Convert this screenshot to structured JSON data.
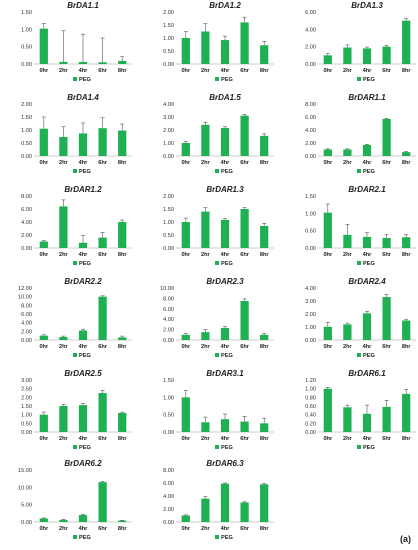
{
  "figure": {
    "label": "(a)",
    "bar_color": "#1eb053",
    "error_color": "#555555",
    "axis_color": "#999999"
  },
  "chart_data": [
    {
      "type": "bar",
      "title": "BrDA1.1",
      "categories": [
        "0hr",
        "2hr",
        "4hr",
        "6hr",
        "8hr"
      ],
      "series": [
        {
          "name": "PEG",
          "values": [
            1.02,
            0.06,
            0.06,
            0.05,
            0.09
          ],
          "errors": [
            0.15,
            0.9,
            0.8,
            0.7,
            0.12
          ]
        }
      ],
      "ylim": [
        0,
        1.5
      ],
      "yticks": [
        "0.00",
        "0.50",
        "1.00",
        "1.50"
      ],
      "legend": "bottom"
    },
    {
      "type": "bar",
      "title": "BrDA1.2",
      "categories": [
        "0hr",
        "2hr",
        "4hr",
        "6hr",
        "8hr"
      ],
      "series": [
        {
          "name": "PEG",
          "values": [
            1.0,
            1.25,
            0.92,
            1.6,
            0.72
          ],
          "errors": [
            0.25,
            0.3,
            0.15,
            0.2,
            0.15
          ]
        }
      ],
      "ylim": [
        0,
        2.0
      ],
      "yticks": [
        "0.00",
        "0.50",
        "1.00",
        "1.50",
        "2.00"
      ],
      "legend": "bottom"
    },
    {
      "type": "bar",
      "title": "BrDA1.3",
      "categories": [
        "0hr",
        "2hr",
        "4hr",
        "6hr",
        "8hr"
      ],
      "series": [
        {
          "name": "PEG",
          "values": [
            1.0,
            1.9,
            1.8,
            2.0,
            5.0
          ],
          "errors": [
            0.2,
            0.3,
            0.15,
            0.15,
            0.25
          ]
        }
      ],
      "ylim": [
        0,
        6
      ],
      "yticks": [
        "0.00",
        "2.00",
        "4.00",
        "6.00"
      ],
      "legend": "bottom"
    },
    {
      "type": "bar",
      "title": "BrDA1.4",
      "categories": [
        "0hr",
        "2hr",
        "4hr",
        "6hr",
        "8hr"
      ],
      "series": [
        {
          "name": "PEG",
          "values": [
            1.05,
            0.73,
            0.87,
            1.07,
            0.98
          ],
          "errors": [
            0.45,
            0.4,
            0.4,
            0.4,
            0.25
          ]
        }
      ],
      "ylim": [
        0,
        2.0
      ],
      "yticks": [
        "0.00",
        "0.50",
        "1.00",
        "1.50",
        "2.00"
      ],
      "legend": "bottom"
    },
    {
      "type": "bar",
      "title": "BrDA1.5",
      "categories": [
        "0hr",
        "2hr",
        "4hr",
        "6hr",
        "8hr"
      ],
      "series": [
        {
          "name": "PEG",
          "values": [
            1.0,
            2.4,
            2.15,
            3.1,
            1.55
          ],
          "errors": [
            0.1,
            0.2,
            0.1,
            0.1,
            0.15
          ]
        }
      ],
      "ylim": [
        0,
        4.0
      ],
      "yticks": [
        "0.00",
        "1.00",
        "2.00",
        "3.00",
        "4.00"
      ],
      "legend": "bottom"
    },
    {
      "type": "bar",
      "title": "BrDAR1.1",
      "categories": [
        "0hr",
        "2hr",
        "4hr",
        "6hr",
        "8hr"
      ],
      "series": [
        {
          "name": "PEG",
          "values": [
            1.0,
            1.0,
            1.7,
            5.7,
            0.6
          ],
          "errors": [
            0.1,
            0.1,
            0.1,
            0.1,
            0.1
          ]
        }
      ],
      "ylim": [
        0,
        8
      ],
      "yticks": [
        "0.00",
        "2.00",
        "4.00",
        "6.00",
        "8.00"
      ],
      "legend": "bottom"
    },
    {
      "type": "bar",
      "title": "BrDAR1.2",
      "categories": [
        "0hr",
        "2hr",
        "4hr",
        "6hr",
        "8hr"
      ],
      "series": [
        {
          "name": "PEG",
          "values": [
            1.0,
            6.4,
            0.8,
            1.6,
            4.0
          ],
          "errors": [
            0.15,
            1.0,
            1.1,
            0.8,
            0.3
          ]
        }
      ],
      "ylim": [
        0,
        8
      ],
      "yticks": [
        "0.00",
        "2.00",
        "4.00",
        "6.00",
        "8.00"
      ],
      "legend": "bottom"
    },
    {
      "type": "bar",
      "title": "BrDAR1.3",
      "categories": [
        "0hr",
        "2hr",
        "4hr",
        "6hr",
        "8hr"
      ],
      "series": [
        {
          "name": "PEG",
          "values": [
            1.0,
            1.4,
            1.08,
            1.5,
            0.85
          ],
          "errors": [
            0.15,
            0.15,
            0.05,
            0.05,
            0.1
          ]
        }
      ],
      "ylim": [
        0,
        2.0
      ],
      "yticks": [
        "0.00",
        "0.50",
        "1.00",
        "1.50",
        "2.00"
      ],
      "legend": "bottom"
    },
    {
      "type": "bar",
      "title": "BrDAR2.1",
      "categories": [
        "0hr",
        "2hr",
        "4hr",
        "6hr",
        "8hr"
      ],
      "series": [
        {
          "name": "PEG",
          "values": [
            1.02,
            0.38,
            0.32,
            0.29,
            0.31
          ],
          "errors": [
            0.25,
            0.3,
            0.12,
            0.1,
            0.08
          ]
        }
      ],
      "ylim": [
        0,
        1.5
      ],
      "yticks": [
        "0.00",
        "0.50",
        "1.00",
        "1.50"
      ],
      "legend": "bottom"
    },
    {
      "type": "bar",
      "title": "BrDAR2.2",
      "categories": [
        "0hr",
        "2hr",
        "4hr",
        "6hr",
        "8hr"
      ],
      "series": [
        {
          "name": "PEG",
          "values": [
            1.0,
            0.7,
            2.2,
            10.0,
            0.6
          ],
          "errors": [
            0.2,
            0.2,
            0.3,
            0.2,
            0.3
          ]
        }
      ],
      "ylim": [
        0,
        12
      ],
      "yticks": [
        "0.00",
        "2.00",
        "4.00",
        "6.00",
        "8.00",
        "10.00",
        "12.00"
      ],
      "legend": "bottom"
    },
    {
      "type": "bar",
      "title": "BrDAR2.3",
      "categories": [
        "0hr",
        "2hr",
        "4hr",
        "6hr",
        "8hr"
      ],
      "series": [
        {
          "name": "PEG",
          "values": [
            1.0,
            1.5,
            2.3,
            7.5,
            1.0
          ],
          "errors": [
            0.3,
            0.5,
            0.3,
            0.4,
            0.25
          ]
        }
      ],
      "ylim": [
        0,
        10
      ],
      "yticks": [
        "0.00",
        "2.00",
        "4.00",
        "6.00",
        "8.00",
        "10.00"
      ],
      "legend": "bottom"
    },
    {
      "type": "bar",
      "title": "BrDAR2.4",
      "categories": [
        "0hr",
        "2hr",
        "4hr",
        "6hr",
        "8hr"
      ],
      "series": [
        {
          "name": "PEG",
          "values": [
            1.02,
            1.2,
            2.05,
            3.3,
            1.5
          ],
          "errors": [
            0.35,
            0.1,
            0.15,
            0.2,
            0.1
          ]
        }
      ],
      "ylim": [
        0,
        4.0
      ],
      "yticks": [
        "0.00",
        "1.00",
        "2.00",
        "3.00",
        "4.00"
      ],
      "legend": "bottom"
    },
    {
      "type": "bar",
      "title": "BrDAR2.5",
      "categories": [
        "0hr",
        "2hr",
        "4hr",
        "6hr",
        "8hr"
      ],
      "series": [
        {
          "name": "PEG",
          "values": [
            1.0,
            1.5,
            1.55,
            2.25,
            1.1
          ],
          "errors": [
            0.15,
            0.1,
            0.1,
            0.15,
            0.05
          ]
        }
      ],
      "ylim": [
        0,
        3.0
      ],
      "yticks": [
        "0.00",
        "0.50",
        "1.00",
        "1.50",
        "2.00",
        "2.50",
        "3.00"
      ],
      "legend": "bottom"
    },
    {
      "type": "bar",
      "title": "BrDAR3.1",
      "categories": [
        "0hr",
        "2hr",
        "4hr",
        "6hr",
        "8hr"
      ],
      "series": [
        {
          "name": "PEG",
          "values": [
            1.0,
            0.28,
            0.37,
            0.3,
            0.25
          ],
          "errors": [
            0.2,
            0.15,
            0.15,
            0.15,
            0.15
          ]
        }
      ],
      "ylim": [
        0,
        1.5
      ],
      "yticks": [
        "0.00",
        "0.50",
        "1.00",
        "1.50"
      ],
      "legend": "bottom"
    },
    {
      "type": "bar",
      "title": "BrDAR6.1",
      "categories": [
        "0hr",
        "2hr",
        "4hr",
        "6hr",
        "8hr"
      ],
      "series": [
        {
          "name": "PEG",
          "values": [
            1.0,
            0.57,
            0.42,
            0.58,
            0.88
          ],
          "errors": [
            0.03,
            0.05,
            0.2,
            0.15,
            0.1
          ]
        }
      ],
      "ylim": [
        0,
        1.2
      ],
      "yticks": [
        "0.00",
        "0.20",
        "0.40",
        "0.60",
        "0.80",
        "1.00",
        "1.20"
      ],
      "legend": "bottom"
    },
    {
      "type": "bar",
      "title": "BrDAR6.2",
      "categories": [
        "0hr",
        "2hr",
        "4hr",
        "6hr",
        "8hr"
      ],
      "series": [
        {
          "name": "PEG",
          "values": [
            1.0,
            0.6,
            2.0,
            11.5,
            0.4
          ],
          "errors": [
            0.15,
            0.15,
            0.2,
            0.2,
            0.1
          ]
        }
      ],
      "ylim": [
        0,
        15
      ],
      "yticks": [
        "0.00",
        "5.00",
        "10.00",
        "15.00"
      ],
      "legend": "bottom"
    },
    {
      "type": "bar",
      "title": "BrDAR6.3",
      "categories": [
        "0hr",
        "2hr",
        "4hr",
        "6hr",
        "8hr"
      ],
      "series": [
        {
          "name": "PEG",
          "values": [
            1.0,
            3.6,
            5.9,
            3.0,
            5.8
          ],
          "errors": [
            0.1,
            0.3,
            0.1,
            0.1,
            0.1
          ]
        }
      ],
      "ylim": [
        0,
        8
      ],
      "yticks": [
        "0.00",
        "2.00",
        "4.00",
        "6.00",
        "8.00"
      ],
      "legend": "bottom"
    }
  ]
}
